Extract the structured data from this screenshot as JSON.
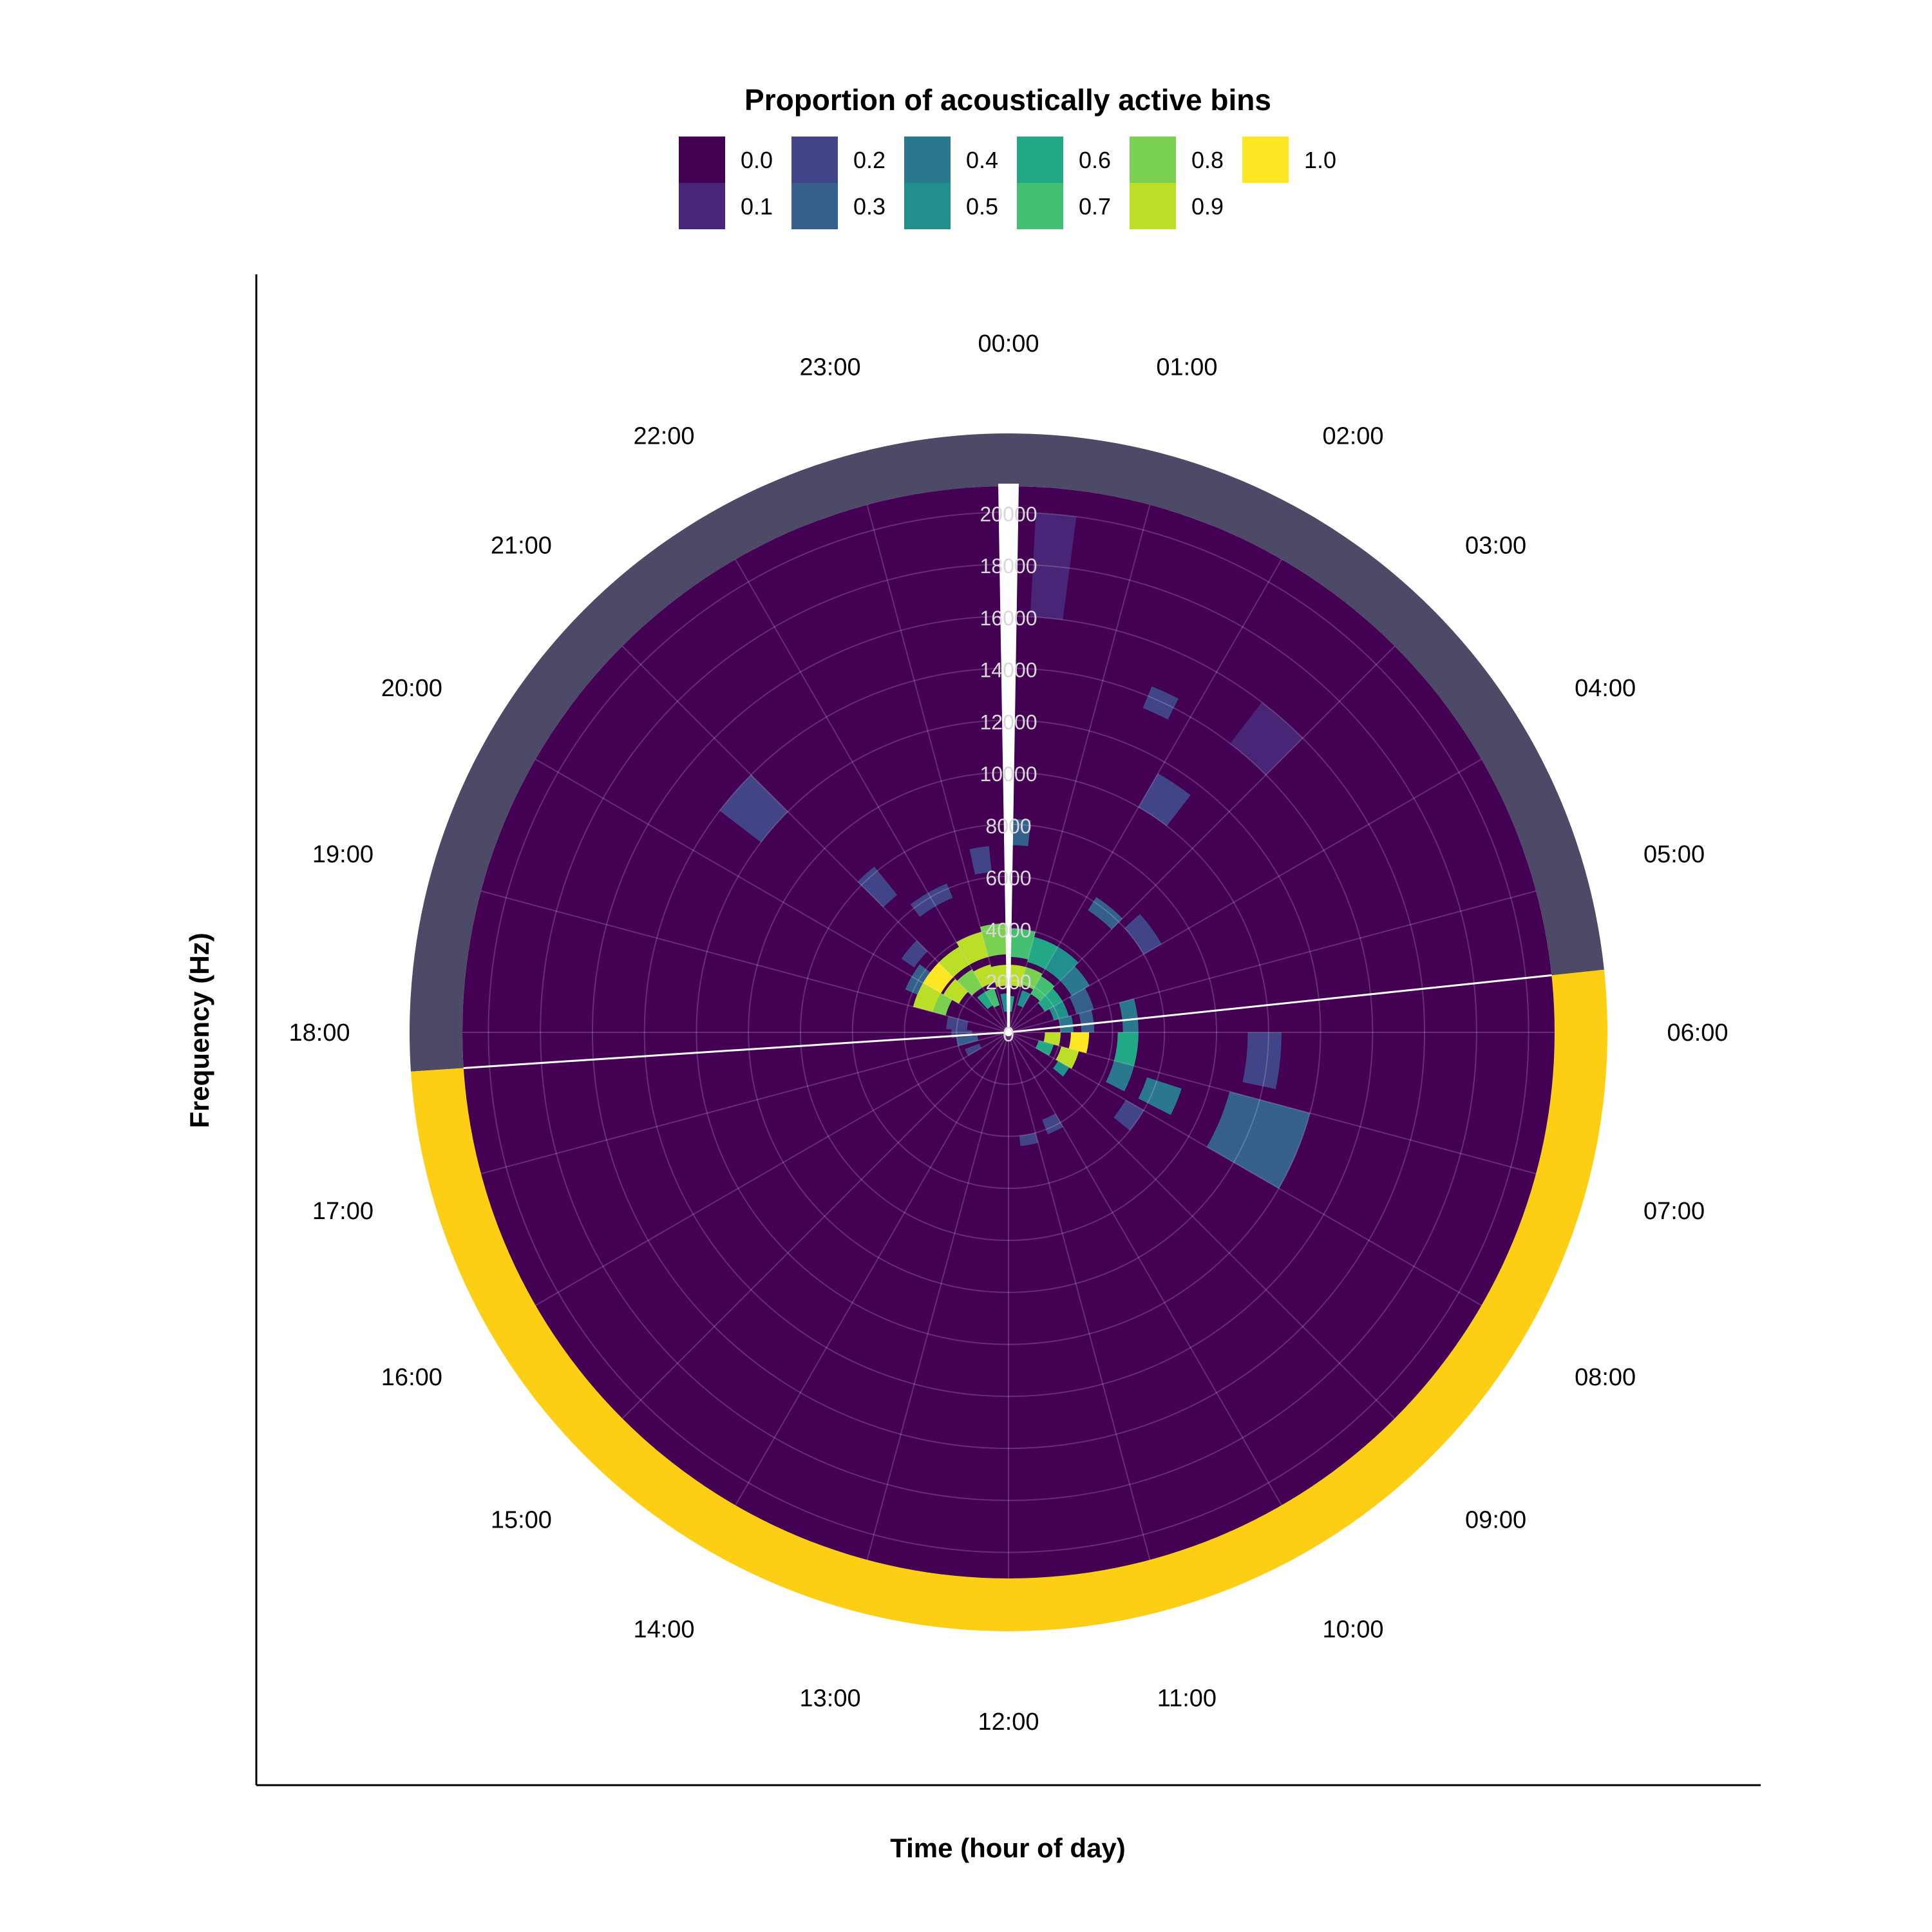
{
  "chart_data": {
    "type": "heatmap",
    "subtype": "polar",
    "legend": {
      "title": "Proportion of acoustically active bins",
      "entries": [
        {
          "label": "0.0",
          "color": "#440154"
        },
        {
          "label": "0.1",
          "color": "#482576"
        },
        {
          "label": "0.2",
          "color": "#414487"
        },
        {
          "label": "0.3",
          "color": "#35608D"
        },
        {
          "label": "0.4",
          "color": "#2A788E"
        },
        {
          "label": "0.5",
          "color": "#21908C"
        },
        {
          "label": "0.6",
          "color": "#22A884"
        },
        {
          "label": "0.7",
          "color": "#43BF71"
        },
        {
          "label": "0.8",
          "color": "#7AD151"
        },
        {
          "label": "0.9",
          "color": "#BBDF27"
        },
        {
          "label": "1.0",
          "color": "#FDE725"
        }
      ],
      "placement": "top"
    },
    "xlabel": "Time (hour of day)",
    "ylabel": "Frequency (Hz)",
    "angular_ticks": [
      "00:00",
      "01:00",
      "02:00",
      "03:00",
      "04:00",
      "05:00",
      "06:00",
      "07:00",
      "08:00",
      "09:00",
      "10:00",
      "11:00",
      "12:00",
      "13:00",
      "14:00",
      "15:00",
      "16:00",
      "17:00",
      "18:00",
      "19:00",
      "20:00",
      "21:00",
      "22:00",
      "23:00"
    ],
    "radial_ticks": [
      0,
      2000,
      4000,
      6000,
      8000,
      10000,
      12000,
      14000,
      16000,
      18000,
      20000
    ],
    "radial_range": [
      0,
      21000
    ],
    "day_night_ring": {
      "night": {
        "from_hour": 17.75,
        "to_hour": 5.6,
        "color": "#4D4A68"
      },
      "day": {
        "from_hour": 5.6,
        "to_hour": 17.75,
        "color": "#FCCF14"
      }
    },
    "background_color": "#440154",
    "cells": [
      [
        19.0,
        20.0,
        3000,
        3800,
        0.9
      ],
      [
        19.0,
        20.0,
        2500,
        3000,
        0.8
      ],
      [
        19.5,
        20.5,
        3800,
        4300,
        0.3
      ],
      [
        20.0,
        21.0,
        3000,
        3800,
        0.95
      ],
      [
        20.0,
        21.0,
        2200,
        2900,
        0.9
      ],
      [
        20.3,
        21.0,
        4400,
        5000,
        0.2
      ],
      [
        21.0,
        22.0,
        3000,
        3800,
        0.9
      ],
      [
        21.0,
        22.0,
        2000,
        2800,
        0.8
      ],
      [
        21.2,
        22.0,
        1200,
        1800,
        0.6
      ],
      [
        21.5,
        22.5,
        5600,
        6200,
        0.2
      ],
      [
        22.0,
        23.0,
        3000,
        4000,
        0.85
      ],
      [
        22.0,
        23.0,
        2000,
        2700,
        0.9
      ],
      [
        22.0,
        22.8,
        1100,
        1800,
        0.7
      ],
      [
        23.0,
        24.0,
        3000,
        4200,
        0.8
      ],
      [
        23.0,
        24.0,
        1800,
        2600,
        0.85
      ],
      [
        23.2,
        24.0,
        800,
        1500,
        0.5
      ],
      [
        23.2,
        23.6,
        6200,
        7200,
        0.2
      ],
      [
        0.0,
        1.0,
        2900,
        4000,
        0.7
      ],
      [
        0.0,
        1.0,
        1800,
        2600,
        0.9
      ],
      [
        0.0,
        0.6,
        800,
        1400,
        0.6
      ],
      [
        0.0,
        0.4,
        7200,
        8200,
        0.3
      ],
      [
        1.0,
        2.0,
        2800,
        3800,
        0.6
      ],
      [
        1.0,
        2.0,
        1900,
        2600,
        0.8
      ],
      [
        1.2,
        2.0,
        1100,
        1700,
        0.5
      ],
      [
        2.0,
        3.0,
        2800,
        3800,
        0.5
      ],
      [
        2.0,
        3.0,
        1700,
        2500,
        0.7
      ],
      [
        2.2,
        3.0,
        5600,
        6200,
        0.3
      ],
      [
        3.0,
        4.0,
        2800,
        3600,
        0.4
      ],
      [
        3.0,
        4.0,
        1600,
        2400,
        0.6
      ],
      [
        3.2,
        4.0,
        6000,
        6800,
        0.2
      ],
      [
        4.0,
        5.0,
        2700,
        3400,
        0.3
      ],
      [
        4.0,
        5.0,
        1800,
        2400,
        0.5
      ],
      [
        5.0,
        6.0,
        2800,
        3300,
        0.3
      ],
      [
        5.0,
        6.0,
        2000,
        2500,
        0.4
      ],
      [
        5.0,
        6.0,
        4400,
        5000,
        0.4
      ],
      [
        6.0,
        7.0,
        2400,
        3100,
        1.0
      ],
      [
        6.0,
        7.0,
        1400,
        2000,
        0.9
      ],
      [
        6.0,
        7.0,
        4200,
        5000,
        0.6
      ],
      [
        6.0,
        6.8,
        9200,
        10500,
        0.15
      ],
      [
        7.0,
        8.0,
        2100,
        2800,
        0.9
      ],
      [
        7.0,
        8.0,
        1200,
        1800,
        0.6
      ],
      [
        7.0,
        7.8,
        4200,
        5000,
        0.4
      ],
      [
        7.0,
        8.0,
        8800,
        12000,
        0.3
      ],
      [
        7.2,
        7.8,
        5600,
        7000,
        0.4
      ],
      [
        8.0,
        8.6,
        2200,
        2700,
        0.5
      ],
      [
        8.0,
        8.6,
        5200,
        6000,
        0.2
      ],
      [
        10.0,
        10.6,
        3600,
        4200,
        0.2
      ],
      [
        11.0,
        11.6,
        4000,
        4400,
        0.15
      ],
      [
        16.0,
        16.6,
        1200,
        1800,
        0.2
      ],
      [
        17.0,
        17.6,
        1200,
        2000,
        0.3
      ],
      [
        17.6,
        18.2,
        1400,
        2200,
        0.2
      ],
      [
        18.2,
        19.0,
        1600,
        2400,
        0.2
      ],
      [
        0.2,
        0.5,
        16000,
        20000,
        0.1
      ],
      [
        20.5,
        21.0,
        12000,
        14000,
        0.15
      ],
      [
        21.0,
        21.4,
        6800,
        8200,
        0.2
      ],
      [
        1.5,
        1.8,
        13500,
        14400,
        0.15
      ],
      [
        2.0,
        2.5,
        10000,
        11500,
        0.15
      ],
      [
        2.5,
        3.0,
        14000,
        16000,
        0.1
      ]
    ]
  }
}
